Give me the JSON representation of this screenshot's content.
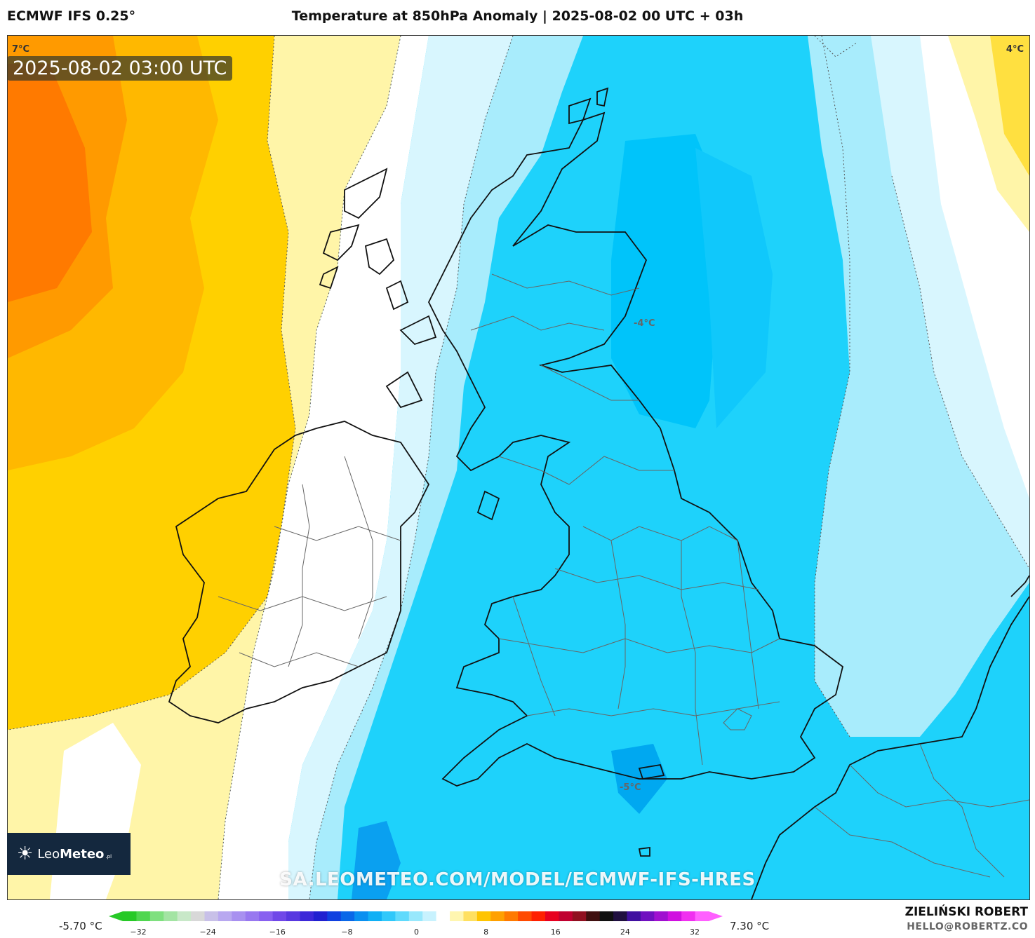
{
  "header": {
    "model": "ECMWF IFS 0.25°",
    "title": "Temperature at 850hPa Anomaly | 2025-08-02 00 UTC + 03h"
  },
  "map": {
    "timestamp": "2025-08-02 03:00 UTC",
    "corner_left": "7°C",
    "corner_right": "4°C",
    "labels": {
      "scotland": "-4°C",
      "channel": "-5°C"
    },
    "watermark": "SA.LEOMETEO.COM/MODEL/ECMWF-IFS-HRES"
  },
  "logo": {
    "name_light": "Leo",
    "name_bold": "Meteo",
    "suffix": ".pl",
    "icon": "sun-icon"
  },
  "legend": {
    "min_label": "-5.70 °C",
    "max_label": "7.30 °C",
    "ticks": [
      "−32",
      "−24",
      "−16",
      "−8",
      "0",
      "8",
      "16",
      "24",
      "32"
    ],
    "colors": [
      "#27c927",
      "#4fd64f",
      "#7fe07f",
      "#a3e4a3",
      "#c8e8c8",
      "#d8d8d8",
      "#c8c0e8",
      "#b8a8f0",
      "#a890f0",
      "#9878f0",
      "#8860f0",
      "#7048e8",
      "#5838e0",
      "#3c28d8",
      "#2020d0",
      "#1040e0",
      "#0a68e8",
      "#0a90f0",
      "#10b0f5",
      "#30c8fa",
      "#60dafc",
      "#98e8fc",
      "#c8f2fe",
      "#ffffff",
      "#fff6b0",
      "#ffe060",
      "#ffc400",
      "#ffa000",
      "#ff7a00",
      "#ff4a00",
      "#ff2000",
      "#e80020",
      "#c00030",
      "#901020",
      "#401010",
      "#101010",
      "#201040",
      "#4010a0",
      "#7010c0",
      "#a010d0",
      "#d010e0",
      "#f030f0",
      "#ff60ff"
    ]
  },
  "author": {
    "name": "ZIELIŃSKI ROBERT",
    "email": "HELLO@ROBERTZ.CO"
  },
  "colors": {
    "warm_orange": "#ff8a00",
    "warm_yellow": "#ffd000",
    "pale_yellow": "#fff5a8",
    "cold_blue": "#1ed2fb",
    "pale_blue": "#a8ecfc",
    "deep_blue": "#00b8f8"
  }
}
